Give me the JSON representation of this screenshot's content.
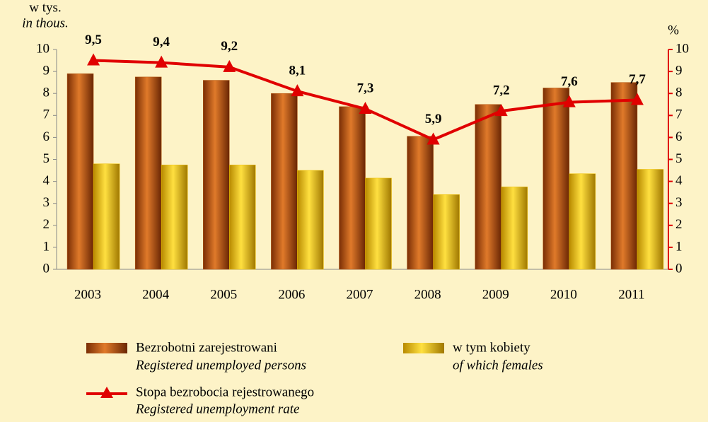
{
  "chart_data": {
    "type": "bar",
    "categories": [
      "2003",
      "2004",
      "2005",
      "2006",
      "2007",
      "2008",
      "2009",
      "2010",
      "2011"
    ],
    "series": [
      {
        "name": "Bezrobotni zarejestrowani",
        "name_en": "Registered unemployed persons",
        "color": "#b5560f",
        "values": [
          8.9,
          8.75,
          8.6,
          8.0,
          7.4,
          6.05,
          7.5,
          8.25,
          8.5
        ]
      },
      {
        "name": "w tym kobiety",
        "name_en": "of which females",
        "color": "#f0c000",
        "values": [
          4.8,
          4.75,
          4.75,
          4.5,
          4.15,
          3.4,
          3.75,
          4.35,
          4.55
        ]
      },
      {
        "name": "Stopa bezrobocia rejestrowanego",
        "name_en": "Registered unemployment rate",
        "color": "#e00000",
        "axis": "y2",
        "type": "line",
        "values": [
          9.5,
          9.4,
          9.2,
          8.1,
          7.3,
          5.9,
          7.2,
          7.6,
          7.7
        ],
        "value_labels": [
          "9,5",
          "9,4",
          "9,2",
          "8,1",
          "7,3",
          "5,9",
          "7,2",
          "7,6",
          "7,7"
        ]
      }
    ],
    "y_label": "w tys.",
    "y_label_en": "in thous.",
    "y2_label": "%",
    "ylim": [
      0,
      10
    ],
    "yticks": [
      0,
      1,
      2,
      3,
      4,
      5,
      6,
      7,
      8,
      9,
      10
    ],
    "y2lim": [
      0,
      10
    ],
    "y2ticks": [
      0,
      1,
      2,
      3,
      4,
      5,
      6,
      7,
      8,
      9,
      10
    ]
  }
}
